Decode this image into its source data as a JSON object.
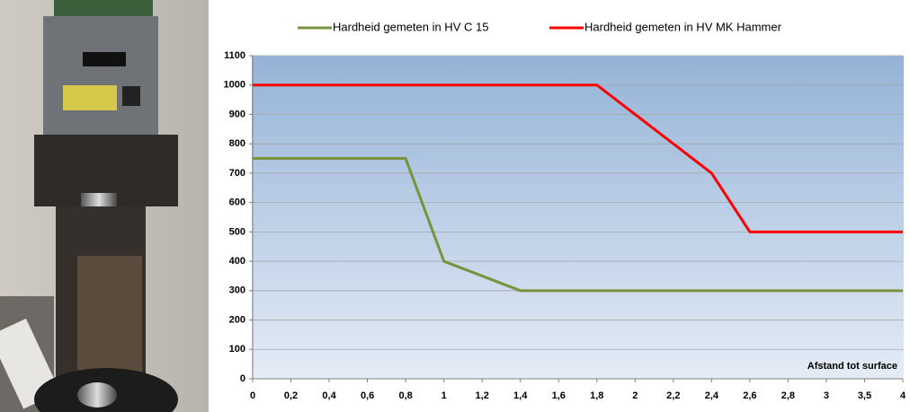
{
  "chart_data": {
    "type": "line",
    "categories": [
      "0",
      "0,2",
      "0,4",
      "0,6",
      "0,8",
      "1",
      "1,2",
      "1,4",
      "1,6",
      "1,8",
      "2",
      "2,2",
      "2,4",
      "2,6",
      "2,8",
      "3",
      "3,5",
      "4"
    ],
    "series": [
      {
        "name": "Hardheid gemeten in HV C 15",
        "color": "#77933c",
        "values": [
          750,
          750,
          750,
          750,
          750,
          400,
          350,
          300,
          300,
          300,
          300,
          300,
          300,
          300,
          300,
          300,
          300,
          300
        ]
      },
      {
        "name": "Hardheid gemeten in HV MK Hammer",
        "color": "#ff0000",
        "values": [
          1000,
          1000,
          1000,
          1000,
          1000,
          1000,
          1000,
          1000,
          1000,
          1000,
          900,
          800,
          700,
          500,
          500,
          500,
          500,
          500
        ]
      }
    ],
    "x_label": "Afstand tot surface",
    "ylim": [
      0,
      1100
    ],
    "yticks": [
      0,
      100,
      200,
      300,
      400,
      500,
      600,
      700,
      800,
      900,
      1000,
      1100
    ],
    "grid": true,
    "legend": "top"
  }
}
